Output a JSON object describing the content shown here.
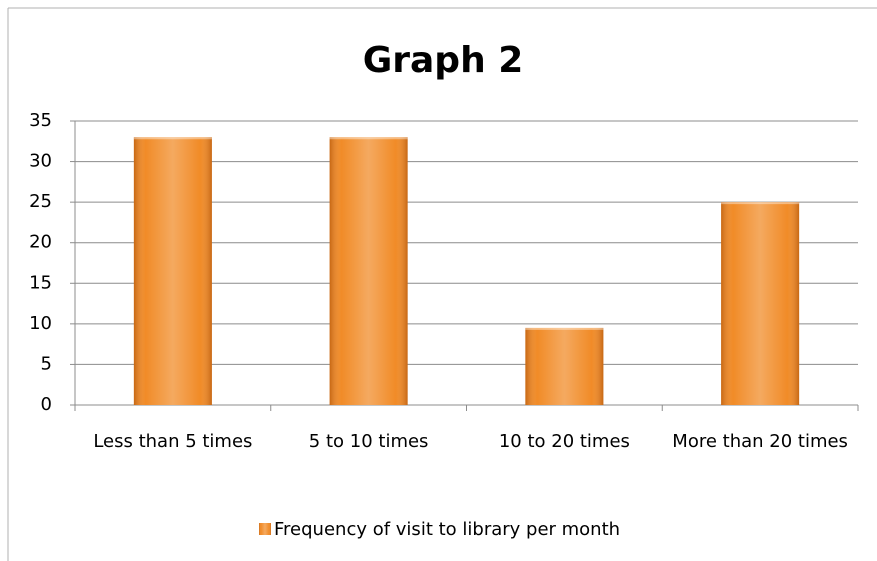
{
  "chart_data": {
    "type": "bar",
    "title": "Graph 2",
    "categories": [
      "Less than 5 times",
      "5 to 10 times",
      "10 to 20 times",
      "More than 20 times"
    ],
    "series": [
      {
        "name": "Frequency of visit to library per month",
        "color": "#f0851c",
        "values": [
          33,
          33,
          9.5,
          25
        ]
      }
    ],
    "ylim": [
      0,
      35
    ],
    "yticks": [
      0,
      5,
      10,
      15,
      20,
      25,
      30,
      35
    ],
    "grid": true,
    "legend": "bottom"
  }
}
